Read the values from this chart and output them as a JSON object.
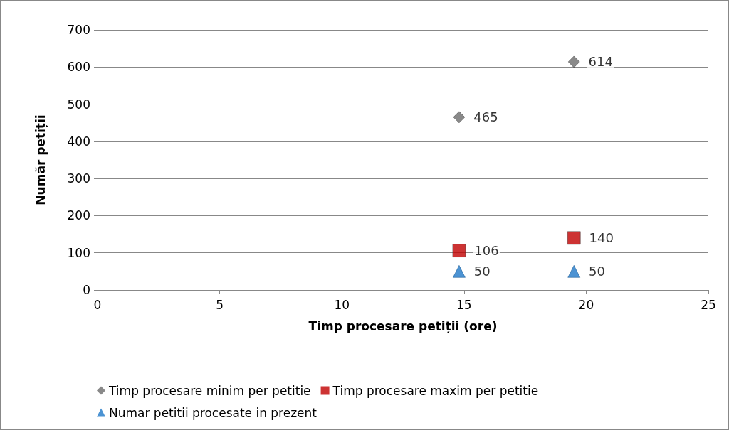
{
  "chart_data": {
    "type": "scatter",
    "xlabel": "Timp procesare petiții (ore)",
    "ylabel": "Număr petiții",
    "series": [
      {
        "name": "Timp procesare minim per petitie",
        "color": "#6b6b6b",
        "marker": "diamond",
        "values": [
          465,
          614
        ]
      },
      {
        "name": "Timp procesare maxim per petitie",
        "color": "#c00000",
        "marker": "square",
        "values": [
          106,
          140
        ]
      },
      {
        "name": "Numar petitii procesate in prezent",
        "color": "#1f78c8",
        "marker": "triangle",
        "values": [
          50,
          50
        ]
      }
    ],
    "x": [
      14.8,
      19.5
    ],
    "xlim": [
      0,
      25
    ],
    "xticks": [
      0,
      5,
      10,
      15,
      20,
      25
    ],
    "ylim": [
      0,
      700
    ],
    "yticks": [
      0,
      100,
      200,
      300,
      400,
      500,
      600,
      700
    ],
    "grid": "y",
    "legend": "bottom",
    "data_labels": true
  }
}
